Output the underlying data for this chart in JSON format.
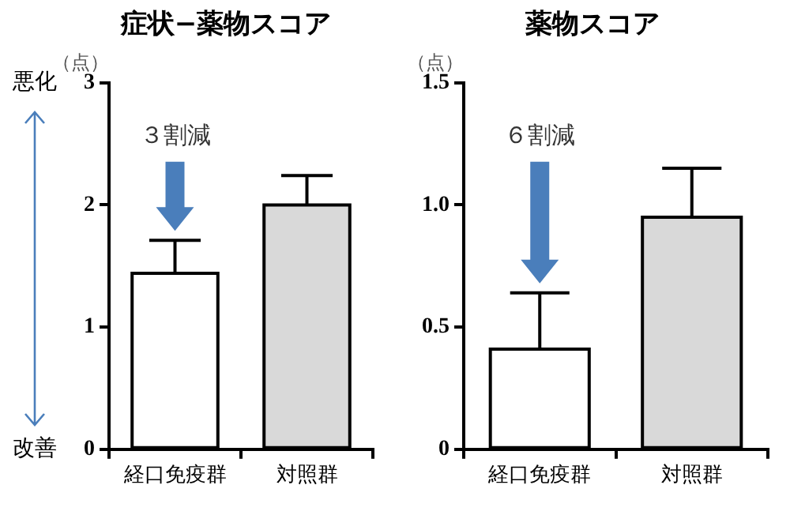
{
  "chart_data": [
    {
      "type": "bar",
      "title": "症状−薬物スコア",
      "ylabel": "（点）",
      "categories": [
        "経口免疫群",
        "対照群"
      ],
      "values": [
        1.44,
        2.0
      ],
      "colors": [
        "#ffffff",
        "#d9d9d9"
      ],
      "errors": [
        [
          1.44,
          1.71
        ],
        [
          2.0,
          2.24
        ]
      ],
      "ylim": [
        0,
        3
      ],
      "yticks": [
        0,
        1,
        2,
        3
      ],
      "annotations": [
        "悪化",
        "改善",
        "３割減"
      ]
    },
    {
      "type": "bar",
      "title": "薬物スコア",
      "ylabel": "（点）",
      "categories": [
        "経口免疫群",
        "対照群"
      ],
      "values": [
        0.41,
        0.95
      ],
      "colors": [
        "#ffffff",
        "#d9d9d9"
      ],
      "errors": [
        [
          0.41,
          0.64
        ],
        [
          0.95,
          1.15
        ]
      ],
      "ylim": [
        0,
        1.5
      ],
      "yticks": [
        0,
        0.5,
        {
          "value": 1,
          "label": "1.0"
        },
        1.5
      ],
      "annotations": [
        "６割減"
      ]
    }
  ]
}
